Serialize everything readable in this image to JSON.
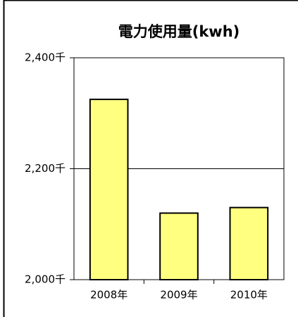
{
  "chart_data": {
    "type": "bar",
    "title": "電力使用量(kwh)",
    "categories": [
      "2008年",
      "2009年",
      "2010年"
    ],
    "values": [
      2325,
      2120,
      2130
    ],
    "color": "#ffff80",
    "ylim": [
      2000,
      2400
    ],
    "yticks": [
      {
        "value": 2000,
        "label": "2,000千"
      },
      {
        "value": 2200,
        "label": "2,200千"
      },
      {
        "value": 2400,
        "label": "2,400千"
      }
    ],
    "grid": true
  }
}
